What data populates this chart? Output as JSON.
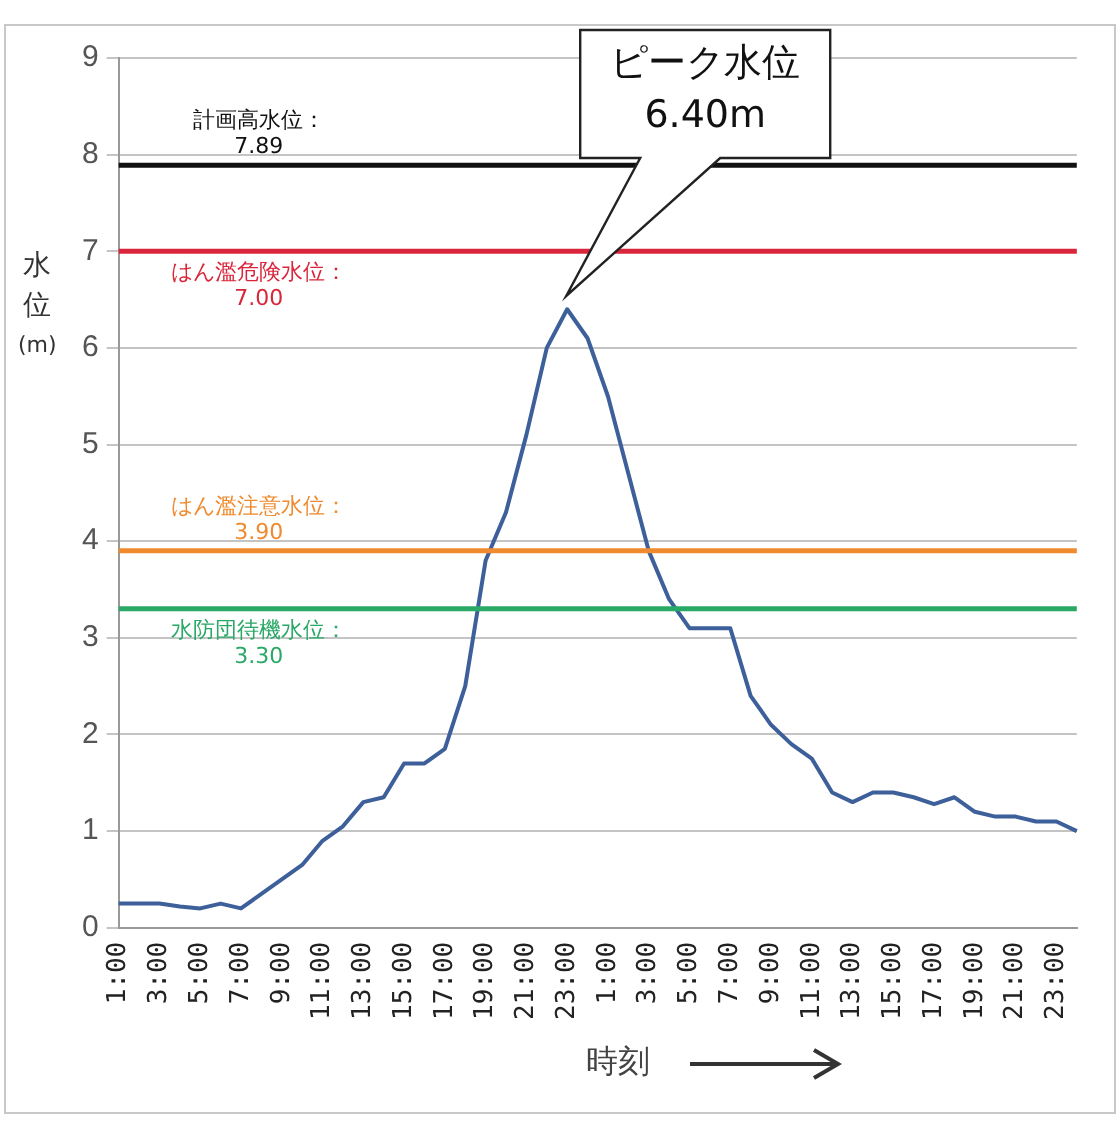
{
  "chart_data": {
    "type": "line",
    "xlabel": "時刻",
    "ylabel": "水位(m)",
    "categories": [
      "1:00",
      null,
      "3:00",
      null,
      "5:00",
      null,
      "7:00",
      null,
      "9:00",
      null,
      "11:00",
      null,
      "13:00",
      null,
      "15:00",
      null,
      "17:00",
      null,
      "19:00",
      null,
      "21:00",
      null,
      "23:00",
      null,
      "1:00",
      null,
      "3:00",
      null,
      "5:00",
      null,
      "7:00",
      null,
      "9:00",
      null,
      "11:00",
      null,
      "13:00",
      null,
      "15:00",
      null,
      "17:00",
      null,
      "19:00",
      null,
      "21:00",
      null,
      "23:00",
      null
    ],
    "series": [
      {
        "color": "#3d5f9a",
        "values": [
          0.25,
          0.25,
          0.25,
          0.22,
          0.2,
          0.25,
          0.2,
          0.35,
          0.5,
          0.65,
          0.9,
          1.05,
          1.3,
          1.35,
          1.7,
          1.7,
          1.85,
          2.5,
          3.8,
          4.3,
          5.1,
          6.0,
          6.4,
          6.1,
          5.5,
          4.7,
          3.9,
          3.4,
          3.1,
          3.1,
          3.1,
          2.4,
          2.1,
          1.9,
          1.75,
          1.4,
          1.3,
          1.4,
          1.4,
          1.35,
          1.28,
          1.35,
          1.2,
          1.15,
          1.15,
          1.1,
          1.1,
          1.0
        ]
      }
    ],
    "ylim": [
      0,
      9
    ],
    "yticks": [
      0,
      1,
      2,
      3,
      4,
      5,
      6,
      7,
      8,
      9
    ],
    "grid": "y",
    "marker": "none",
    "line_style": "solid",
    "ref_lines": [
      {
        "axis": "y",
        "value": 7.89,
        "label": "計画高水位：\n7.89",
        "color": "#111111"
      },
      {
        "axis": "y",
        "value": 7.0,
        "label": "はん濫危険水位：\n7.00",
        "color": "#d9263a"
      },
      {
        "axis": "y",
        "value": 3.9,
        "label": "はん濫注意水位：\n3.90",
        "color": "#ef8a2e"
      },
      {
        "axis": "y",
        "value": 3.3,
        "label": "水防団待機水位：\n3.30",
        "color": "#2aa866"
      }
    ],
    "annotations": [
      "ピーク水位\n6.40m"
    ]
  }
}
